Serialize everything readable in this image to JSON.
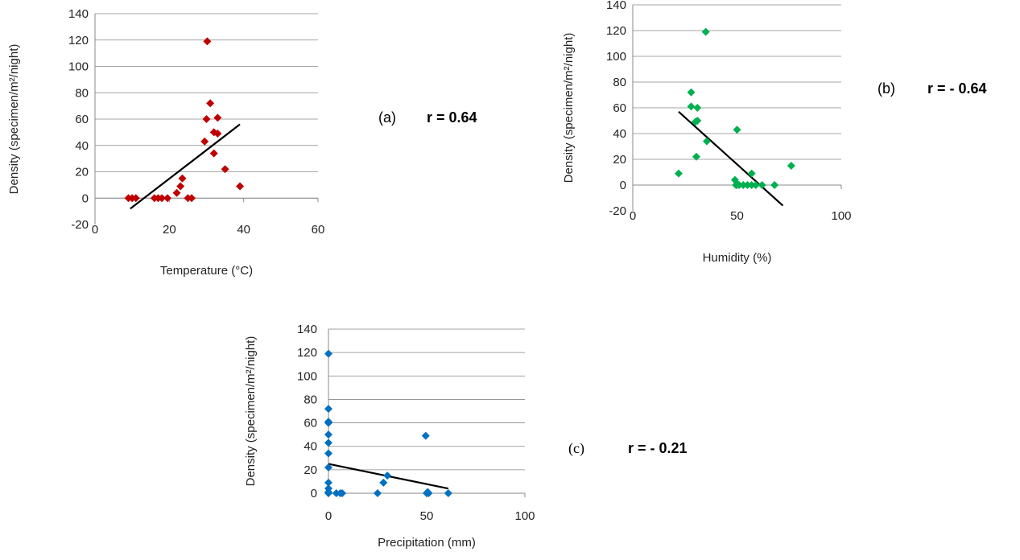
{
  "chart_data": [
    {
      "id": "a",
      "type": "scatter",
      "panel_letter": "(a)",
      "r_label": "r = 0.64",
      "xlabel": "Temperature (°C)",
      "ylabel": "Density (specimen/m²/night)",
      "xlim": [
        0,
        60
      ],
      "ylim": [
        -20,
        140
      ],
      "xticks": [
        0,
        20,
        40,
        60
      ],
      "yticks": [
        -20,
        0,
        20,
        40,
        60,
        80,
        100,
        120,
        140
      ],
      "marker_color": "#c00000",
      "grid": true,
      "x": [
        9,
        10,
        11,
        16,
        17,
        18,
        19.5,
        22,
        23,
        23.5,
        25,
        26,
        29.5,
        30,
        30.2,
        31,
        32,
        32,
        33,
        33,
        35,
        39
      ],
      "y": [
        0,
        0,
        0,
        0,
        0,
        0,
        0,
        4,
        9,
        15,
        0,
        0,
        43,
        60,
        119,
        72,
        50,
        34,
        61,
        49,
        22,
        9
      ],
      "trendline": {
        "x": [
          9.5,
          39
        ],
        "y": [
          -8,
          56
        ]
      }
    },
    {
      "id": "b",
      "type": "scatter",
      "panel_letter": "(b)",
      "r_label": "r = - 0.64",
      "xlabel": "Humidity (%)",
      "ylabel": "Density (specimen/m²/night)",
      "xlim": [
        0,
        100
      ],
      "ylim": [
        -20,
        140
      ],
      "xticks": [
        0,
        50,
        100
      ],
      "yticks": [
        -20,
        0,
        20,
        40,
        60,
        80,
        100,
        120,
        140
      ],
      "marker_color": "#00b050",
      "grid": true,
      "x": [
        22,
        28,
        28,
        30,
        30.5,
        31,
        31,
        35,
        35.5,
        49,
        49.5,
        50,
        50,
        51,
        53,
        55,
        57,
        57,
        59,
        62,
        68,
        76
      ],
      "y": [
        9,
        72,
        61,
        49,
        22,
        60,
        50,
        119,
        34,
        4,
        0,
        43,
        1,
        0,
        0,
        0,
        9,
        0,
        0,
        0,
        0,
        15
      ],
      "trendline": {
        "x": [
          22,
          72
        ],
        "y": [
          57,
          -16
        ]
      }
    },
    {
      "id": "c",
      "type": "scatter",
      "panel_letter": "(c)",
      "r_label": "r = - 0.21",
      "xlabel": "Precipitation (mm)",
      "ylabel": "Density (specimen/m²/night)",
      "xlim": [
        0,
        100
      ],
      "ylim": [
        0,
        140
      ],
      "xticks": [
        0,
        50,
        100
      ],
      "yticks": [
        0,
        20,
        40,
        60,
        80,
        100,
        120,
        140
      ],
      "marker_color": "#0070c0",
      "grid": true,
      "x": [
        0,
        0,
        0,
        0,
        0,
        0,
        0,
        0,
        0,
        0,
        0,
        0,
        4,
        6,
        7,
        25,
        28,
        30,
        49.5,
        50,
        51,
        50.5,
        61
      ],
      "y": [
        119,
        72,
        61,
        60,
        50,
        43,
        34,
        22,
        9,
        4,
        1,
        0,
        0,
        0,
        0,
        0,
        9,
        15,
        49,
        0,
        0,
        1,
        0
      ],
      "trendline": {
        "x": [
          0,
          61
        ],
        "y": [
          25,
          4
        ]
      }
    }
  ]
}
